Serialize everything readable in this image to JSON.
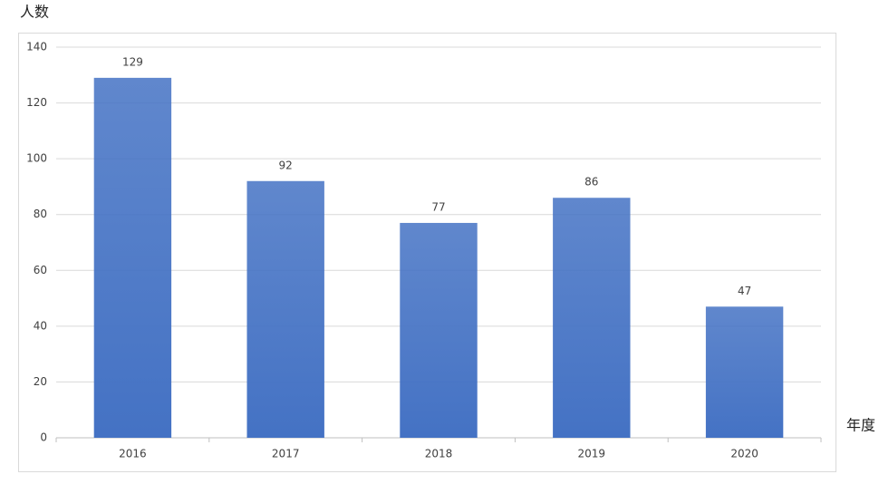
{
  "chart_data": {
    "type": "bar",
    "y_label": "人数",
    "x_label": "年度",
    "categories": [
      "2016",
      "2017",
      "2018",
      "2019",
      "2020"
    ],
    "values": [
      129,
      92,
      77,
      86,
      47
    ],
    "color": "#4472c4",
    "ylim": [
      0,
      140
    ],
    "yticks": [
      0,
      20,
      40,
      60,
      80,
      100,
      120,
      140
    ],
    "grid": true
  }
}
